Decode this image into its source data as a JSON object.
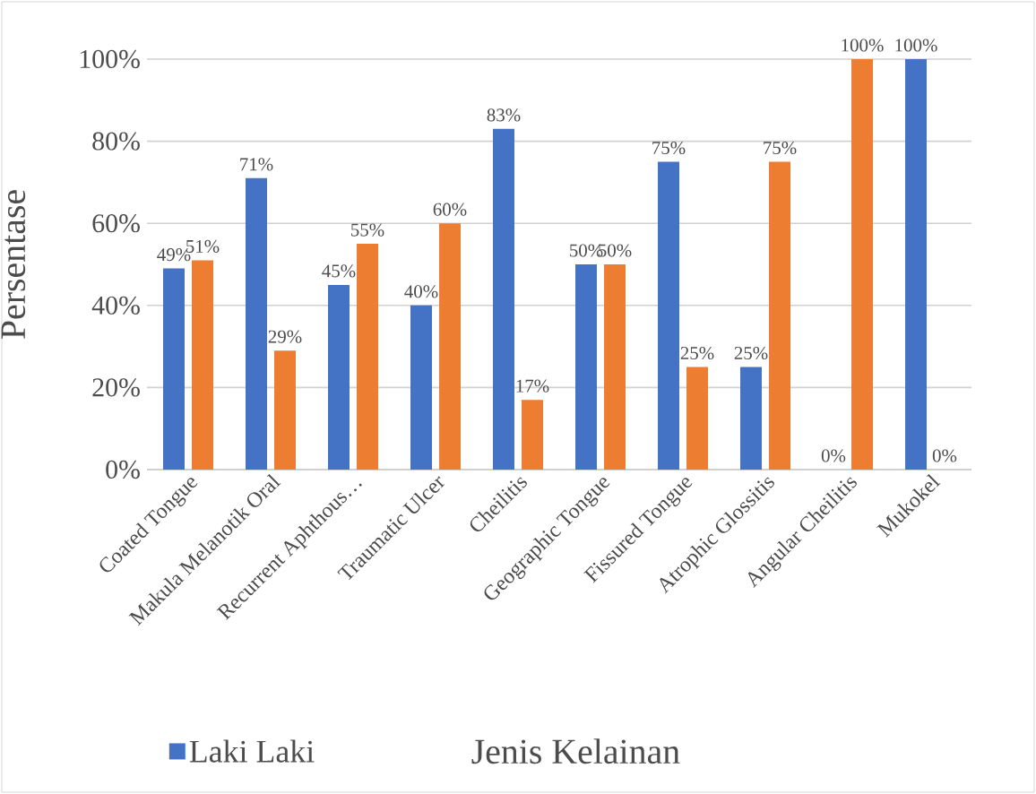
{
  "chart_data": {
    "type": "bar",
    "xlabel": "Jenis Kelainan",
    "ylabel": "Persentase",
    "categories": [
      "Coated Tongue",
      "Makula Melanotik Oral",
      "Recurrent Aphthous…",
      "Traumatic Ulcer",
      "Cheilitis",
      "Geographic Tongue",
      "Fissured Tongue",
      "Atrophic Glossitis",
      "Angular Cheilitis",
      "Mukokel"
    ],
    "series": [
      {
        "name": "Laki Laki",
        "color": "#4472c4",
        "values": [
          49,
          71,
          45,
          40,
          83,
          50,
          75,
          25,
          0,
          100
        ],
        "value_labels": [
          "49%",
          "71%",
          "45%",
          "40%",
          "83%",
          "50%",
          "75%",
          "25%",
          "0%",
          "100%"
        ]
      },
      {
        "color": "#ed7d31",
        "values": [
          51,
          29,
          55,
          60,
          17,
          50,
          25,
          75,
          100,
          0
        ],
        "value_labels": [
          "51%",
          "29%",
          "55%",
          "60%",
          "17%",
          "50%",
          "25%",
          "75%",
          "100%",
          "0%"
        ]
      }
    ],
    "ylim": [
      0,
      100
    ],
    "yticks": [
      {
        "value": 0,
        "label": "0%"
      },
      {
        "value": 20,
        "label": "20%"
      },
      {
        "value": 40,
        "label": "40%"
      },
      {
        "value": 60,
        "label": "60%"
      },
      {
        "value": 80,
        "label": "80%"
      },
      {
        "value": 100,
        "label": "100%"
      }
    ],
    "grid": "y",
    "legend": "bottom"
  }
}
